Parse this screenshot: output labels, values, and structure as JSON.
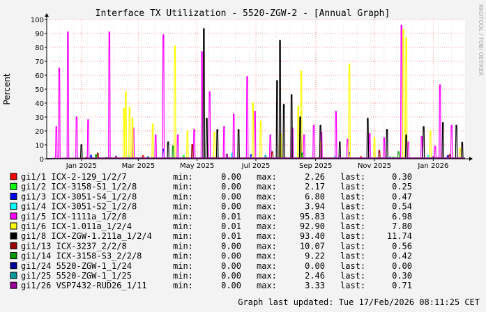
{
  "chart_data": {
    "type": "line",
    "title": "Interface TX Utilization - 5520-ZGW-2 - [Annual Graph]",
    "ylabel": "Percent",
    "watermark": "RRDTOOL / TOBI OETIKER",
    "ylim": [
      0,
      100
    ],
    "yticks": [
      0,
      10,
      20,
      30,
      40,
      50,
      60,
      70,
      80,
      90,
      100
    ],
    "xlim": [
      "2024-12-10",
      "2026-02-17"
    ],
    "xticks": [
      {
        "label": "Jan 2025",
        "date": "2025-01-15"
      },
      {
        "label": "Mar 2025",
        "date": "2025-03-15"
      },
      {
        "label": "May 2025",
        "date": "2025-05-15"
      },
      {
        "label": "Jul 2025",
        "date": "2025-07-15"
      },
      {
        "label": "Sep 2025",
        "date": "2025-09-15"
      },
      {
        "label": "Nov 2025",
        "date": "2025-11-15"
      },
      {
        "label": "Jan 2026",
        "date": "2026-01-15"
      }
    ],
    "grid": true,
    "legend_placement": "bottom",
    "series": [
      {
        "name": "gi1/1 ICX-2-129_1/2/7",
        "color": "#ff0000",
        "min": "0.00",
        "max": "2.26",
        "last": "0.30",
        "points": [
          [
            "2025-01-20",
            1.0
          ],
          [
            "2025-03-20",
            2.26
          ],
          [
            "2025-06-01",
            1.2
          ],
          [
            "2025-08-15",
            0.8
          ],
          [
            "2025-11-01",
            1.5
          ],
          [
            "2026-01-20",
            0.9
          ]
        ]
      },
      {
        "name": "gi1/2 ICX-3158-S1_1/2/8",
        "color": "#00ff00",
        "min": "0.00",
        "max": "2.17",
        "last": "0.25",
        "points": [
          [
            "2025-02-10",
            1.1
          ],
          [
            "2025-05-01",
            2.17
          ],
          [
            "2025-09-10",
            0.9
          ],
          [
            "2025-12-05",
            1.3
          ]
        ]
      },
      {
        "name": "gi1/3 ICX-3051-S4_1/2/8",
        "color": "#0000ff",
        "min": "0.00",
        "max": "6.80",
        "last": "0.47",
        "points": [
          [
            "2025-01-25",
            2.5
          ],
          [
            "2025-04-10",
            6.8
          ],
          [
            "2025-07-10",
            3.0
          ],
          [
            "2025-10-20",
            4.5
          ],
          [
            "2026-01-30",
            2.2
          ]
        ]
      },
      {
        "name": "gi1/4 ICX-3051-S2_1/2/8",
        "color": "#00ffff",
        "min": "0.00",
        "max": "3.94",
        "last": "0.54",
        "points": [
          [
            "2025-03-05",
            2.0
          ],
          [
            "2025-06-20",
            3.94
          ],
          [
            "2025-10-05",
            1.8
          ],
          [
            "2026-01-10",
            2.3
          ]
        ]
      },
      {
        "name": "gi1/5 ICX-1111a_1/2/8",
        "color": "#ff00ff",
        "min": "0.01",
        "max": "95.83",
        "last": "6.98",
        "points": [
          [
            "2024-12-20",
            23
          ],
          [
            "2024-12-23",
            65
          ],
          [
            "2025-01-01",
            91
          ],
          [
            "2025-01-10",
            30
          ],
          [
            "2025-01-22",
            28
          ],
          [
            "2025-02-13",
            91
          ],
          [
            "2025-03-10",
            22
          ],
          [
            "2025-04-02",
            17
          ],
          [
            "2025-04-10",
            89
          ],
          [
            "2025-04-25",
            17
          ],
          [
            "2025-05-12",
            21
          ],
          [
            "2025-05-20",
            77
          ],
          [
            "2025-05-28",
            48
          ],
          [
            "2025-06-12",
            23
          ],
          [
            "2025-06-22",
            32
          ],
          [
            "2025-07-06",
            59
          ],
          [
            "2025-07-14",
            34
          ],
          [
            "2025-07-30",
            17
          ],
          [
            "2025-08-22",
            22
          ],
          [
            "2025-09-03",
            17
          ],
          [
            "2025-09-13",
            24
          ],
          [
            "2025-09-21",
            19
          ],
          [
            "2025-10-06",
            34
          ],
          [
            "2025-10-18",
            14
          ],
          [
            "2025-11-10",
            18
          ],
          [
            "2025-11-25",
            15
          ],
          [
            "2025-12-13",
            95.83
          ],
          [
            "2025-12-20",
            12
          ],
          [
            "2026-01-03",
            16
          ],
          [
            "2026-01-17",
            9
          ],
          [
            "2026-01-22",
            53
          ],
          [
            "2026-02-03",
            24
          ],
          [
            "2026-02-12",
            6.98
          ]
        ]
      },
      {
        "name": "gi1/6 ICX-1.011a_1/2/4",
        "color": "#ffff00",
        "min": "0.01",
        "max": "92.90",
        "last": "7.80",
        "points": [
          [
            "2025-02-28",
            36
          ],
          [
            "2025-03-02",
            48
          ],
          [
            "2025-03-06",
            37
          ],
          [
            "2025-03-09",
            29
          ],
          [
            "2025-03-30",
            25
          ],
          [
            "2025-04-22",
            81
          ],
          [
            "2025-05-05",
            20
          ],
          [
            "2025-06-02",
            19
          ],
          [
            "2025-07-12",
            40
          ],
          [
            "2025-07-20",
            27
          ],
          [
            "2025-08-10",
            18
          ],
          [
            "2025-08-28",
            38
          ],
          [
            "2025-08-31",
            63
          ],
          [
            "2025-09-20",
            12
          ],
          [
            "2025-10-20",
            68
          ],
          [
            "2025-11-15",
            15
          ],
          [
            "2025-12-15",
            92.9
          ],
          [
            "2025-12-18",
            87
          ],
          [
            "2026-01-12",
            20
          ],
          [
            "2026-02-12",
            7.8
          ]
        ]
      },
      {
        "name": "gi1/8 ICX-ZGW-1.211a_1/2/4",
        "color": "#000000",
        "min": "0.01",
        "max": "93.40",
        "last": "11.74",
        "points": [
          [
            "2025-01-15",
            10
          ],
          [
            "2025-04-15",
            12
          ],
          [
            "2025-05-22",
            93.4
          ],
          [
            "2025-05-25",
            29
          ],
          [
            "2025-06-05",
            21
          ],
          [
            "2025-06-27",
            21
          ],
          [
            "2025-08-06",
            56
          ],
          [
            "2025-08-09",
            85
          ],
          [
            "2025-08-13",
            39
          ],
          [
            "2025-08-21",
            46
          ],
          [
            "2025-08-30",
            30
          ],
          [
            "2025-09-20",
            24
          ],
          [
            "2025-10-10",
            12
          ],
          [
            "2025-11-08",
            29
          ],
          [
            "2025-11-28",
            21
          ],
          [
            "2025-12-18",
            17
          ],
          [
            "2026-01-05",
            23
          ],
          [
            "2026-01-25",
            26
          ],
          [
            "2026-02-08",
            24
          ],
          [
            "2026-02-14",
            11.74
          ]
        ]
      },
      {
        "name": "gi1/13 ICX-3237_2/2/8",
        "color": "#990000",
        "min": "0.00",
        "max": "10.07",
        "last": "0.56",
        "points": [
          [
            "2025-02-01",
            4.0
          ],
          [
            "2025-05-10",
            10.07
          ],
          [
            "2025-08-01",
            5.0
          ],
          [
            "2025-11-20",
            6.0
          ],
          [
            "2026-02-01",
            3.0
          ]
        ]
      },
      {
        "name": "gi1/14 ICX-3158-S3_2/2/8",
        "color": "#009900",
        "min": "0.00",
        "max": "9.22",
        "last": "0.42",
        "points": [
          [
            "2025-01-30",
            3.0
          ],
          [
            "2025-04-20",
            9.22
          ],
          [
            "2025-09-01",
            4.0
          ],
          [
            "2025-12-10",
            5.0
          ]
        ]
      },
      {
        "name": "gi1/24 5520-ZGW-1_1/24",
        "color": "#000099",
        "min": "0.00",
        "max": "0.00",
        "last": "0.00",
        "points": []
      },
      {
        "name": "gi1/25 5520-ZGW-1_1/25",
        "color": "#009999",
        "min": "0.00",
        "max": "2.46",
        "last": "0.30",
        "points": [
          [
            "2025-03-25",
            1.5
          ],
          [
            "2025-07-25",
            2.46
          ],
          [
            "2025-12-01",
            1.2
          ]
        ]
      },
      {
        "name": "gi1/26 VSP7432-RUD26_1/11",
        "color": "#990099",
        "min": "0.00",
        "max": "3.33",
        "last": "0.71",
        "points": [
          [
            "2025-02-20",
            1.8
          ],
          [
            "2025-06-15",
            3.33
          ],
          [
            "2025-10-10",
            2.0
          ],
          [
            "2026-01-15",
            1.5
          ]
        ]
      }
    ],
    "legend_stat_labels": {
      "min": "min:",
      "max": "max:",
      "last": "last:"
    },
    "footer": "Graph last updated: Tue 17/Feb/2026 08:11:25 CET"
  }
}
